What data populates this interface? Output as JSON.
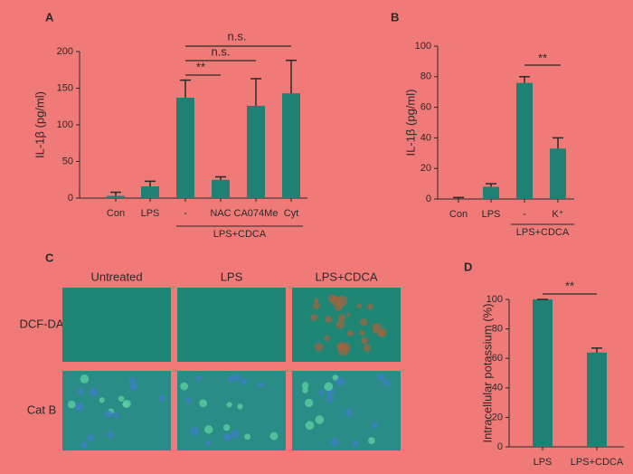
{
  "chart_data": [
    {
      "type": "bar",
      "panel_label": "A",
      "y_label": "IL-1β (pg/ml)",
      "categories": [
        "Con",
        "LPS",
        "-",
        "NAC",
        "CA074Me",
        "Cyt"
      ],
      "values": [
        3,
        16,
        137,
        25,
        126,
        143
      ],
      "errors": [
        5,
        7,
        24,
        4,
        37,
        45
      ],
      "color": "#1f8074",
      "ylim": [
        0,
        200
      ],
      "yticks": [
        0,
        50,
        100,
        150,
        200
      ],
      "grid": false,
      "group_label": "LPS+CDCA",
      "annotations": [
        "n.s.",
        "n.s.",
        "**"
      ]
    },
    {
      "type": "bar",
      "panel_label": "B",
      "y_label": "IL-1β (pg/ml)",
      "categories": [
        "Con",
        "LPS",
        "-",
        "K⁺"
      ],
      "values": [
        0,
        8,
        76,
        33
      ],
      "errors": [
        1,
        2,
        4,
        7
      ],
      "color": "#1f8074",
      "ylim": [
        0,
        100
      ],
      "yticks": [
        0,
        20,
        40,
        60,
        80,
        100
      ],
      "grid": false,
      "group_label": "LPS+CDCA",
      "annotations": [
        "**"
      ]
    },
    {
      "type": "bar",
      "panel_label": "D",
      "y_label": "Intracellular potassium (%)",
      "categories": [
        "LPS",
        "LPS+CDCA"
      ],
      "values": [
        100,
        64
      ],
      "errors": [
        0,
        3
      ],
      "color": "#1f8074",
      "ylim": [
        0,
        100
      ],
      "yticks": [
        0,
        20,
        40,
        60,
        80,
        100
      ],
      "grid": false,
      "annotations": [
        "**"
      ]
    }
  ],
  "panel_c": {
    "panel_label": "C",
    "columns": [
      "Untreated",
      "LPS",
      "LPS+CDCA"
    ],
    "rows": [
      "DCF-DA",
      "Cat B"
    ]
  }
}
